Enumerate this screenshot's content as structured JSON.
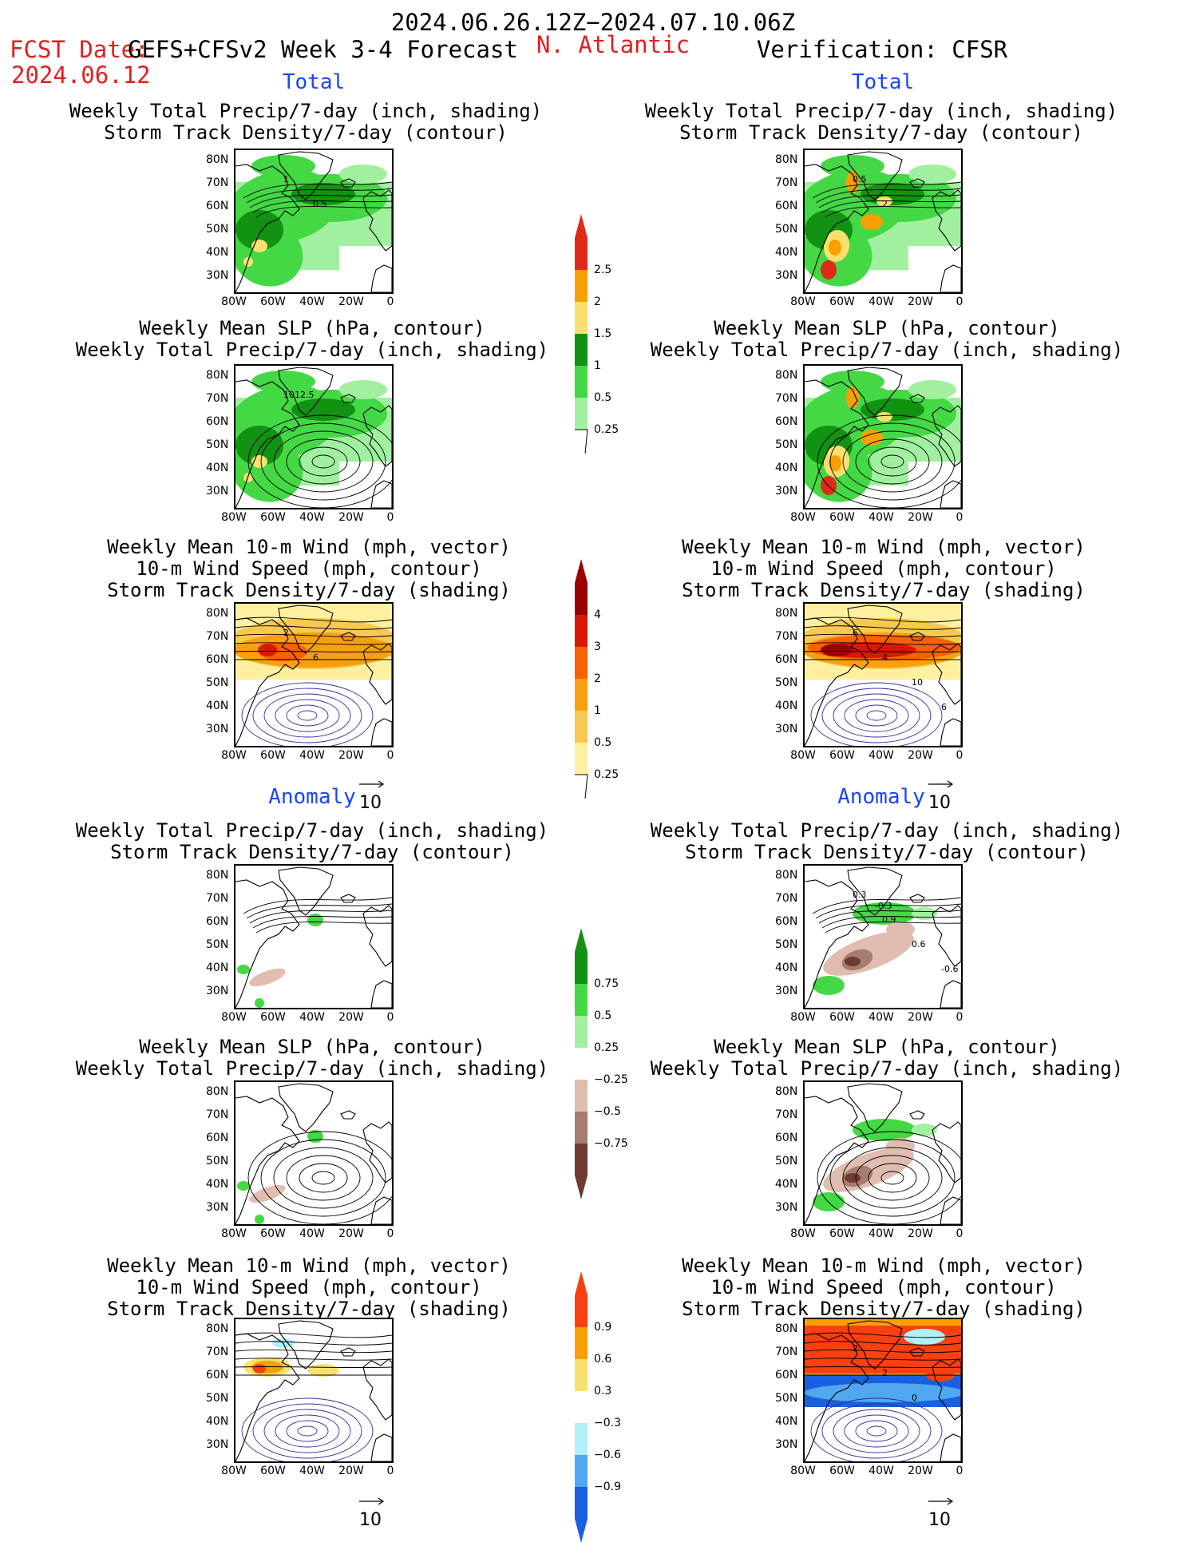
{
  "header": {
    "period": "2024.06.26.12Z−2024.07.10.06Z",
    "fcst_label": "FCST Date:",
    "fcst_model": "GEFS+CFSv2 Week 3-4 Forecast",
    "fcst_date": "2024.06.12",
    "region": "N. Atlantic",
    "verification": "Verification: CFSR"
  },
  "sections": {
    "total": "Total",
    "anomaly": "Anomaly"
  },
  "panel_titles": {
    "precip_storm": [
      "Weekly Total Precip/7-day (inch, shading)",
      "Storm Track Density/7-day (contour)"
    ],
    "slp_precip": [
      "Weekly Mean SLP (hPa, contour)",
      "Weekly Total Precip/7-day (inch, shading)"
    ],
    "wind_storm": [
      "Weekly Mean 10-m Wind (mph, vector)",
      "10-m Wind Speed (mph, contour)",
      "Storm Track Density/7-day (shading)"
    ]
  },
  "axes": {
    "lat_ticks": [
      "80N",
      "70N",
      "60N",
      "50N",
      "40N",
      "30N"
    ],
    "lon_ticks": [
      "80W",
      "60W",
      "40W",
      "20W",
      "0"
    ]
  },
  "vector_reference": "10",
  "contour_labels": {
    "p1": [
      "1",
      "0.5"
    ],
    "p2": [
      "0.5",
      "2"
    ],
    "p3": [
      "1012.5"
    ],
    "p5": [
      "2",
      "6"
    ],
    "p6": [
      "6",
      "4",
      "10",
      "6"
    ],
    "p8": [
      "0.3",
      "0.9",
      "0.6",
      "-0.6",
      "-0.3"
    ],
    "p12": [
      "2",
      "2",
      "0"
    ]
  },
  "colorbars": {
    "total_precip": {
      "labels": [
        "2.5",
        "2",
        "1.5",
        "1",
        "0.5",
        "0.25"
      ],
      "colors": [
        "#e02a18",
        "#f8a000",
        "#f8e070",
        "#129212",
        "#44d844",
        "#a0f0a0"
      ]
    },
    "total_storm": {
      "labels": [
        "4",
        "3",
        "2",
        "1",
        "0.5",
        "0.25"
      ],
      "colors": [
        "#9a0000",
        "#d81800",
        "#f86000",
        "#f8a010",
        "#f8c850",
        "#fff0a0"
      ]
    },
    "anom_precip": {
      "labels": [
        "0.75",
        "0.5",
        "0.25",
        "−0.25",
        "−0.5",
        "−0.75"
      ],
      "colors": [
        "#129212",
        "#44d844",
        "#a0f0a0",
        "#ffffff",
        "#e0bdb0",
        "#a67c70",
        "#6e3b2e"
      ]
    },
    "anom_storm": {
      "labels": [
        "0.9",
        "0.6",
        "0.3",
        "−0.3",
        "−0.6",
        "−0.9"
      ],
      "colors": [
        "#f84010",
        "#f8a000",
        "#f8e070",
        "#ffffff",
        "#b0f0f8",
        "#50a8f0",
        "#1860e0"
      ]
    }
  },
  "colors": {
    "title_red": "#e02020",
    "section_blue": "#1a44ff"
  }
}
